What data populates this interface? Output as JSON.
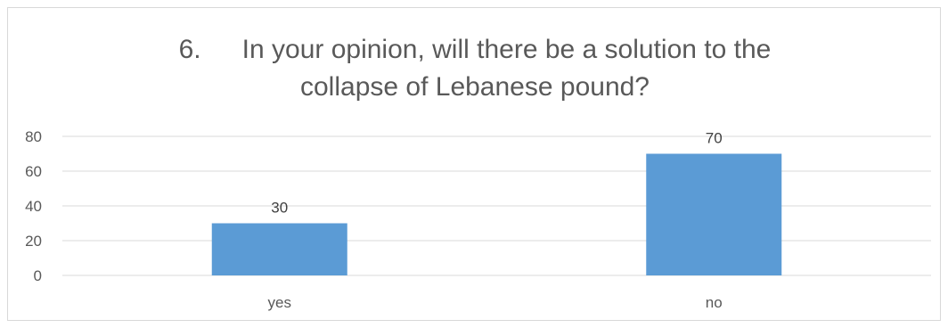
{
  "chart_data": {
    "type": "bar",
    "title_number": "6.",
    "title_line1": "In your opinion, will there be a solution to the",
    "title_line2": "collapse of Lebanese pound?",
    "categories": [
      "yes",
      "no"
    ],
    "values": [
      30,
      70
    ],
    "ylim": [
      0,
      80
    ],
    "yticks": [
      "0",
      "20",
      "40",
      "60",
      "80"
    ],
    "data_labels": [
      "30",
      "70"
    ],
    "grid": true,
    "legend": "none",
    "bar_color": "#5b9bd5"
  }
}
